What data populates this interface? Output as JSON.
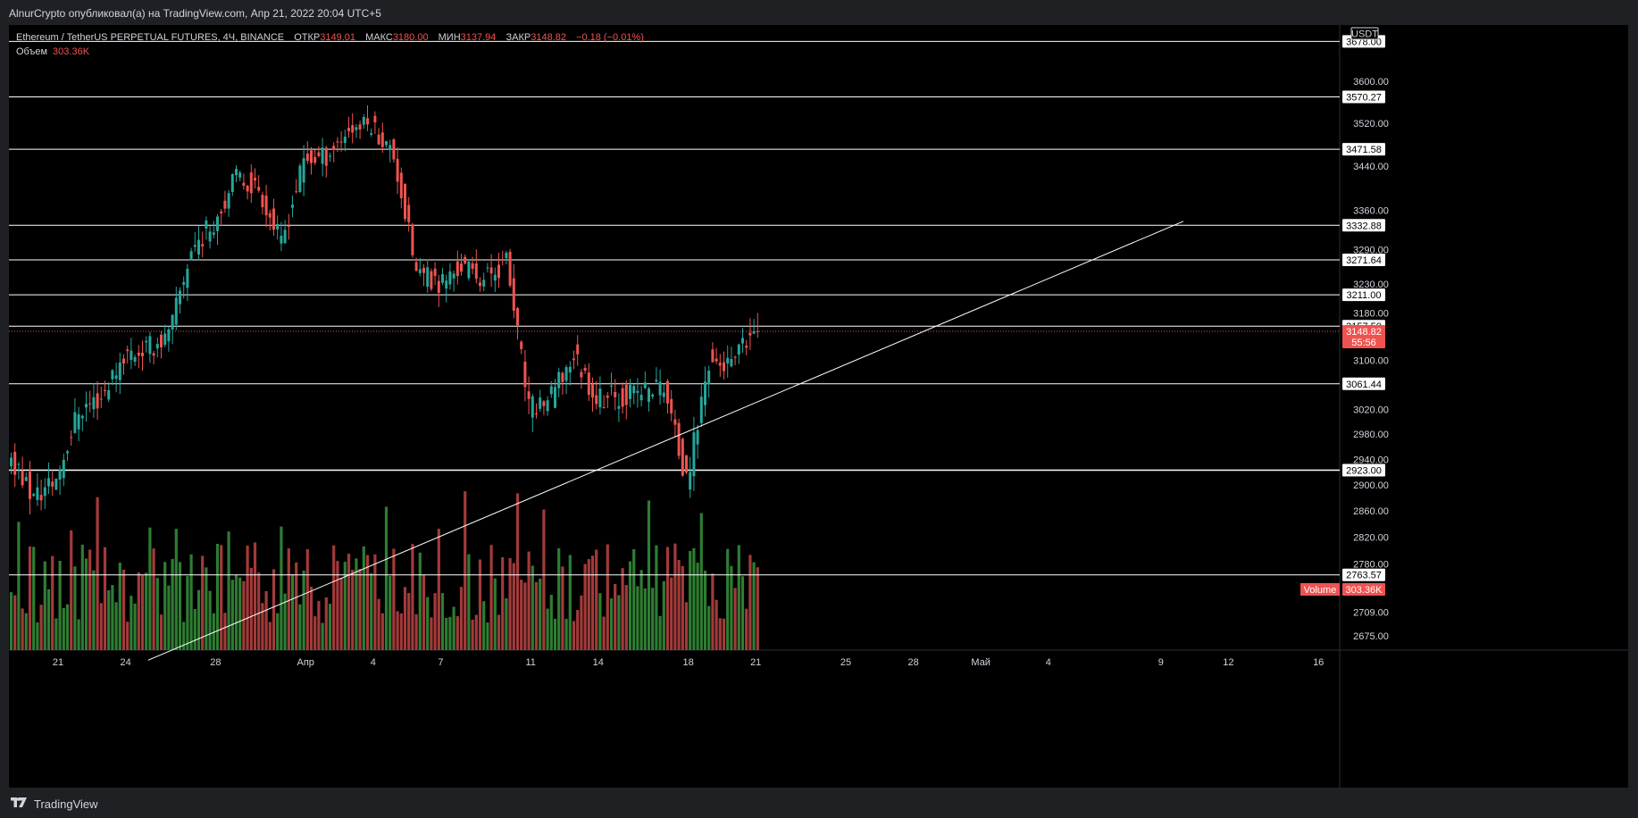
{
  "publisher": "AlnurCrypto опубликовал(а) на TradingView.com, Апр 21, 2022 20:04 UTC+5",
  "legend": {
    "symbol": "Ethereum / TetherUS PERPETUAL FUTURES, 4Ч, BINANCE",
    "open_label": "ОТКР",
    "open": "3149.01",
    "high_label": "МАКС",
    "high": "3180.00",
    "low_label": "МИН",
    "low": "3137.94",
    "close_label": "ЗАКР",
    "close": "3148.82",
    "change": "−0.18 (−0.01%)",
    "volume_label": "Объем",
    "volume": "303.36K"
  },
  "currency": "USDT",
  "volume_badge": {
    "label": "Volume",
    "value": "303.36K"
  },
  "current_price": {
    "price": "3148.82",
    "countdown": "55:56"
  },
  "footer": {
    "brand": "TradingView"
  },
  "colors": {
    "up": "#26a69a",
    "down": "#ef5350",
    "vol_up": "#2e7d32",
    "vol_down": "#a33a3a",
    "line": "#ffffff",
    "background": "#000000"
  },
  "chart_data": {
    "type": "candlestick",
    "symbol": "ETHUSDT",
    "interval": "4H",
    "y_axis": {
      "scale": "log",
      "range": [
        2640,
        3700
      ],
      "ticks": [
        3600,
        3520,
        3440,
        3360,
        3290,
        3230,
        3180,
        3100,
        3020,
        2980,
        2940,
        2900,
        2860,
        2820,
        2780,
        2709,
        2675
      ]
    },
    "x_axis": {
      "tick_labels": [
        "21",
        "24",
        "28",
        "Апр",
        "4",
        "7",
        "11",
        "14",
        "18",
        "21",
        "25",
        "28",
        "Май",
        "4",
        "9",
        "12",
        "16"
      ],
      "tick_dates": [
        "2022-03-21",
        "2022-03-24",
        "2022-03-28",
        "2022-04-01",
        "2022-04-04",
        "2022-04-07",
        "2022-04-11",
        "2022-04-14",
        "2022-04-18",
        "2022-04-21",
        "2022-04-25",
        "2022-04-28",
        "2022-05-01",
        "2022-05-04",
        "2022-05-09",
        "2022-05-12",
        "2022-05-16"
      ]
    },
    "horizontal_levels": [
      3678.0,
      3570.27,
      3471.58,
      3332.88,
      3271.64,
      3211.0,
      3157.5,
      3061.44,
      2923.0,
      2763.57
    ],
    "trendline": {
      "start": [
        "2022-03-25",
        2640
      ],
      "end": [
        "2022-05-10",
        3340
      ]
    },
    "daily_closes": [
      [
        "2022-03-18",
        2930
      ],
      [
        "2022-03-19",
        2945
      ],
      [
        "2022-03-20",
        2880
      ],
      [
        "2022-03-21",
        2910
      ],
      [
        "2022-03-22",
        3020
      ],
      [
        "2022-03-23",
        3040
      ],
      [
        "2022-03-24",
        3110
      ],
      [
        "2022-03-25",
        3120
      ],
      [
        "2022-03-26",
        3140
      ],
      [
        "2022-03-27",
        3290
      ],
      [
        "2022-03-28",
        3340
      ],
      [
        "2022-03-29",
        3420
      ],
      [
        "2022-03-30",
        3400
      ],
      [
        "2022-03-31",
        3300
      ],
      [
        "2022-04-01",
        3450
      ],
      [
        "2022-04-02",
        3460
      ],
      [
        "2022-04-03",
        3510
      ],
      [
        "2022-04-04",
        3520
      ],
      [
        "2022-04-05",
        3460
      ],
      [
        "2022-04-06",
        3250
      ],
      [
        "2022-04-07",
        3230
      ],
      [
        "2022-04-08",
        3260
      ],
      [
        "2022-04-09",
        3240
      ],
      [
        "2022-04-10",
        3270
      ],
      [
        "2022-04-11",
        3020
      ],
      [
        "2022-04-12",
        3040
      ],
      [
        "2022-04-13",
        3110
      ],
      [
        "2022-04-14",
        3040
      ],
      [
        "2022-04-15",
        3040
      ],
      [
        "2022-04-16",
        3050
      ],
      [
        "2022-04-17",
        3060
      ],
      [
        "2022-04-18",
        2900
      ],
      [
        "2022-04-19",
        3100
      ],
      [
        "2022-04-20",
        3090
      ],
      [
        "2022-04-21",
        3148.82
      ]
    ]
  }
}
